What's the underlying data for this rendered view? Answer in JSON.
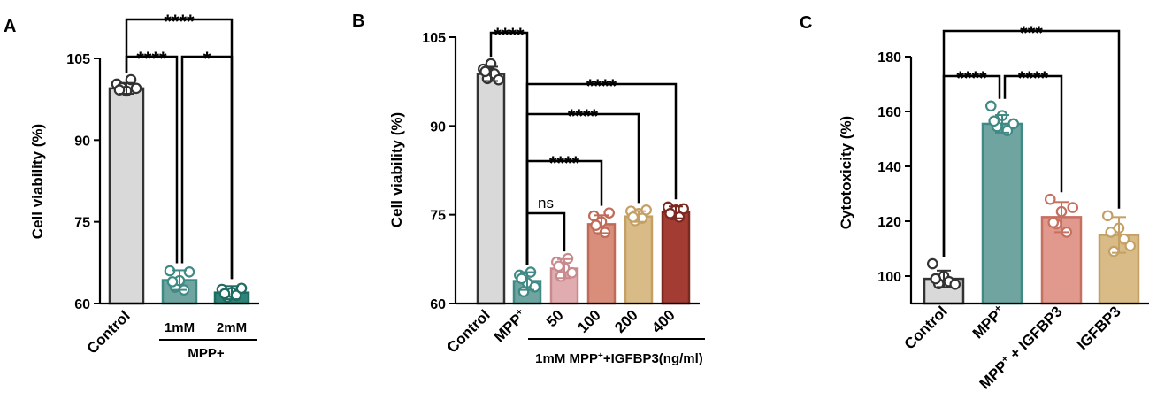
{
  "chart_data": [
    {
      "type": "bar",
      "panel_label": "A",
      "ylabel": "Cell viability (%)",
      "ylim": [
        60,
        105
      ],
      "yticks": [
        60,
        75,
        90,
        105
      ],
      "categories": [
        "Control",
        "1mM",
        "2mM"
      ],
      "group_label": "MPP+",
      "values": [
        99.5,
        64.3,
        62.0
      ],
      "errors": [
        1.0,
        1.8,
        1.2
      ],
      "points": [
        [
          100.3,
          99.6,
          99.0,
          101.1,
          99.5,
          99.2
        ],
        [
          66.0,
          63.0,
          64.2,
          62.5,
          65.8,
          64.0
        ],
        [
          62.6,
          61.2,
          62.0,
          61.5,
          62.8,
          61.8
        ]
      ],
      "colors": [
        "#d9d9d9",
        "#6fa4a0",
        "#2d8378"
      ],
      "edge_colors": [
        "#333333",
        "#3f8a84",
        "#1f6b61"
      ],
      "comparisons": [
        {
          "from": 0,
          "to": 2,
          "label": "****"
        },
        {
          "from": 0,
          "to": 1,
          "label": "****"
        },
        {
          "from": 1,
          "to": 2,
          "label": "*"
        }
      ]
    },
    {
      "type": "bar",
      "panel_label": "B",
      "ylabel": "Cell viability (%)",
      "ylim": [
        60,
        105
      ],
      "yticks": [
        60,
        75,
        90,
        105
      ],
      "categories": [
        "Control",
        "MPP+",
        "50",
        "100",
        "200",
        "400"
      ],
      "group_label": "1mM MPP+ +IGFBP3(ng/ml)",
      "values": [
        98.8,
        63.8,
        65.9,
        73.4,
        74.7,
        75.4
      ],
      "errors": [
        1.2,
        1.5,
        1.6,
        1.5,
        0.9,
        1.0
      ],
      "points": [
        [
          99.6,
          98.0,
          100.5,
          98.8,
          97.8,
          99.2
        ],
        [
          64.8,
          62.0,
          63.5,
          65.3,
          62.8,
          64.2
        ],
        [
          67.0,
          64.6,
          66.0,
          67.6,
          65.2,
          66.3
        ],
        [
          74.8,
          72.5,
          73.8,
          72.0,
          75.3,
          73.2
        ],
        [
          75.6,
          74.0,
          75.2,
          74.4,
          75.8,
          74.6
        ],
        [
          76.3,
          75.0,
          75.8,
          74.6,
          76.0,
          75.2
        ]
      ],
      "colors": [
        "#d9d9d9",
        "#6fa4a0",
        "#e0acb0",
        "#d88e7a",
        "#d8bb86",
        "#a33c33"
      ],
      "edge_colors": [
        "#333333",
        "#3f8a84",
        "#c98a8e",
        "#c06a58",
        "#c4a064",
        "#7a2820"
      ],
      "comparisons": [
        {
          "from": 0,
          "to": 1,
          "label": "****"
        },
        {
          "from": 1,
          "to": 5,
          "label": "****"
        },
        {
          "from": 1,
          "to": 4,
          "label": "****"
        },
        {
          "from": 1,
          "to": 3,
          "label": "****"
        },
        {
          "from": 1,
          "to": 2,
          "label": "ns"
        }
      ]
    },
    {
      "type": "bar",
      "panel_label": "C",
      "ylabel": "Cytotoxicity (%)",
      "ylim": [
        90,
        180
      ],
      "yticks": [
        100,
        120,
        140,
        160,
        180
      ],
      "categories": [
        "Control",
        "MPP+",
        "MPP+ + IGFBP3",
        "IGFBP3"
      ],
      "values": [
        99.0,
        155.5,
        121.5,
        115.0
      ],
      "errors": [
        3.0,
        3.2,
        5.5,
        6.5
      ],
      "points": [
        [
          104.5,
          97.2,
          100.0,
          98.0,
          97.0,
          99.0
        ],
        [
          162.0,
          154.5,
          158.5,
          153.0,
          155.5,
          156.5
        ],
        [
          128.0,
          119.0,
          123.5,
          116.0,
          125.0,
          119.5
        ],
        [
          122.0,
          109.0,
          117.5,
          113.5,
          111.0,
          116.0
        ]
      ],
      "colors": [
        "#d9d9d9",
        "#6fa4a0",
        "#e0998c",
        "#d8bb86"
      ],
      "edge_colors": [
        "#333333",
        "#3f8a84",
        "#c67060",
        "#c4a064"
      ],
      "comparisons": [
        {
          "from": 0,
          "to": 3,
          "label": "***"
        },
        {
          "from": 0,
          "to": 1,
          "label": "****"
        },
        {
          "from": 1,
          "to": 2,
          "label": "****"
        }
      ]
    }
  ]
}
